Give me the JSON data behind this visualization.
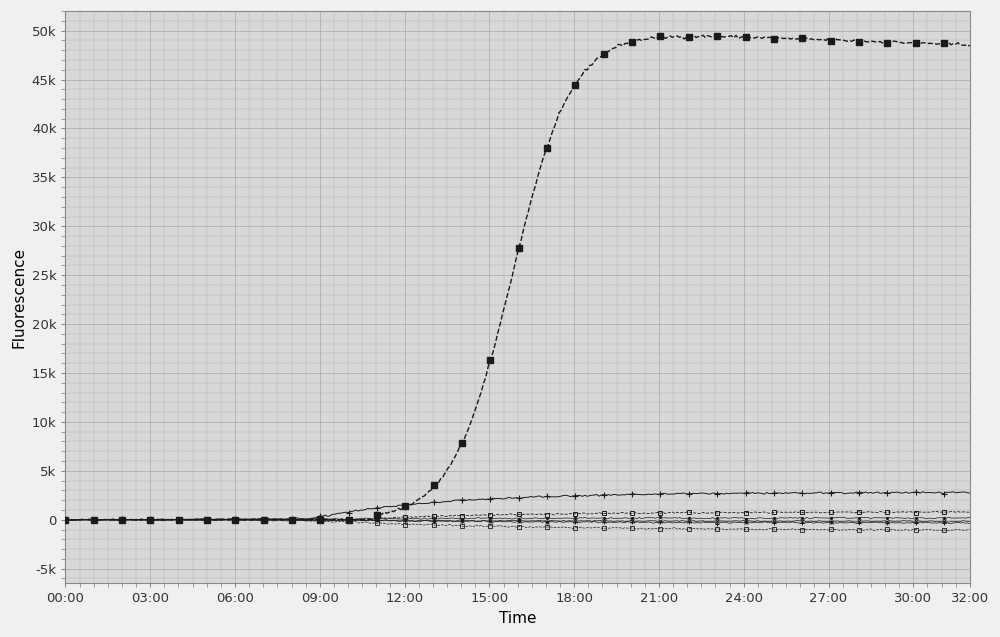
{
  "xlabel": "Time",
  "ylabel": "Fluorescence",
  "ylim": [
    -6500,
    52000
  ],
  "xlim": [
    0,
    32
  ],
  "yticks": [
    -5000,
    0,
    5000,
    10000,
    15000,
    20000,
    25000,
    30000,
    35000,
    40000,
    45000,
    50000
  ],
  "ytick_labels": [
    "-5k",
    "0",
    "5k",
    "10k",
    "15k",
    "20k",
    "25k",
    "30k",
    "35k",
    "40k",
    "45k",
    "50k"
  ],
  "xticks": [
    0,
    3,
    6,
    9,
    12,
    15,
    18,
    21,
    24,
    27,
    30,
    32
  ],
  "xtick_labels": [
    "00:00",
    "03:00",
    "06:00",
    "09:00",
    "12:00",
    "15:00",
    "18:00",
    "21:00",
    "24:00",
    "27:00",
    "30:00",
    "32:00"
  ],
  "fig_bg_color": "#f0f0f0",
  "plot_bg_color": "#d8d8d8",
  "grid_color": "#b0b0b0",
  "line_color": "#1a1a1a",
  "sigmoid_L": 49800,
  "sigmoid_k": 0.95,
  "sigmoid_x0": 15.8,
  "sigmoid_decay_start": 19.5,
  "sigmoid_decay_rate": 0.002,
  "n_points": 384
}
